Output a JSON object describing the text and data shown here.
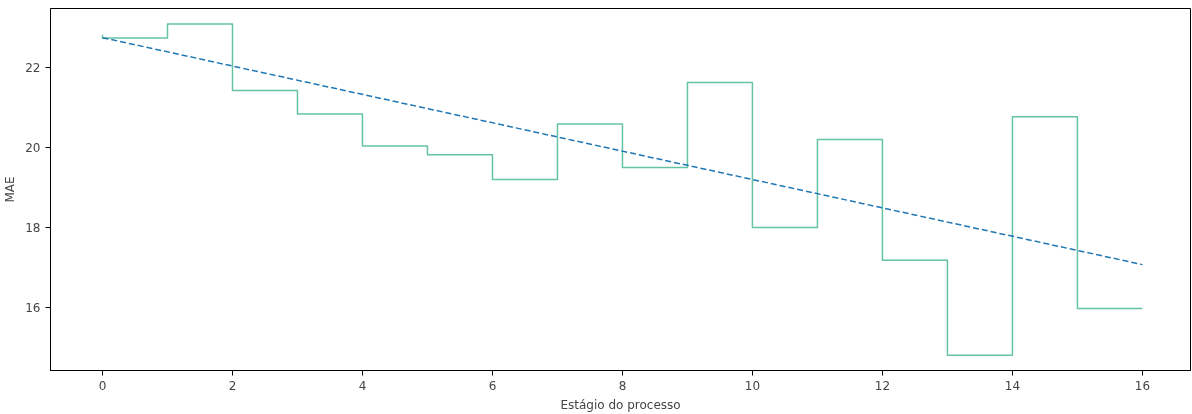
{
  "chart_data": {
    "type": "step",
    "xlabel": "Estágio do processo",
    "ylabel": "MAE",
    "xlim": [
      -0.8,
      16.74
    ],
    "ylim": [
      14.42,
      23.48
    ],
    "xticks": [
      0,
      2,
      4,
      6,
      8,
      10,
      12,
      14,
      16
    ],
    "yticks": [
      16,
      18,
      20,
      22
    ],
    "grid": false,
    "series": [
      {
        "color": "#66c2a5",
        "x": [
          0,
          1,
          2,
          3,
          4,
          5,
          6,
          7,
          8,
          9,
          10,
          11,
          12,
          13,
          14,
          15,
          16
        ],
        "values": [
          22.82,
          22.74,
          23.09,
          21.43,
          20.84,
          20.04,
          19.82,
          19.2,
          20.59,
          19.5,
          21.63,
          18.0,
          20.2,
          17.18,
          14.8,
          20.77,
          15.97
        ]
      },
      {
        "type": "line",
        "color": "#1f77b4",
        "line_style": "dashed",
        "x": [
          0,
          16
        ],
        "values": [
          22.75,
          17.07
        ]
      }
    ]
  }
}
